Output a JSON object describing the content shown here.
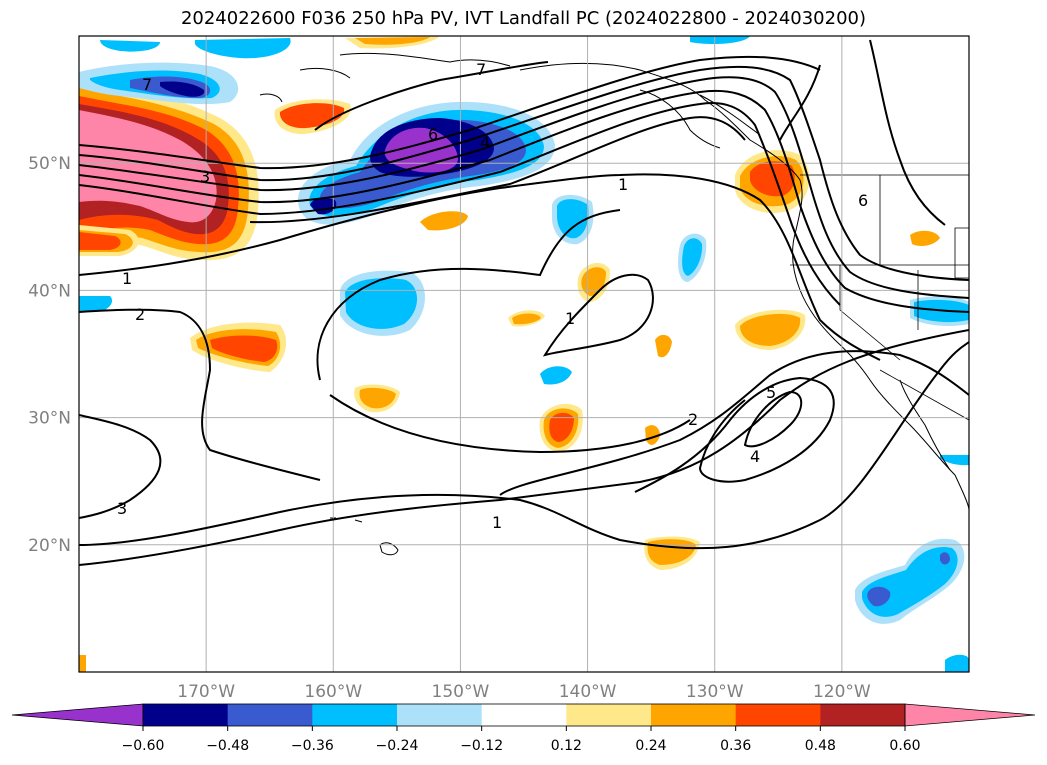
{
  "title": "2024022600 F036 250 hPa PV, IVT Landfall PC (2024022800 - 2024030200)",
  "map": {
    "lon_range": [
      -180,
      -110
    ],
    "lat_range": [
      10,
      60
    ],
    "lat_ticks": [
      {
        "lat": 50,
        "label": "50°N"
      },
      {
        "lat": 40,
        "label": "40°N"
      },
      {
        "lat": 30,
        "label": "30°N"
      },
      {
        "lat": 20,
        "label": "20°N"
      }
    ],
    "lon_ticks": [
      {
        "lon": -170,
        "label": "170°W"
      },
      {
        "lon": -160,
        "label": "160°W"
      },
      {
        "lon": -150,
        "label": "150°W"
      },
      {
        "lon": -140,
        "label": "140°W"
      },
      {
        "lon": -130,
        "label": "130°W"
      },
      {
        "lon": -120,
        "label": "120°W"
      }
    ],
    "gridlines": true
  },
  "contour_labels": [
    "7",
    "3",
    "1",
    "2",
    "6",
    "4",
    "7",
    "1",
    "6",
    "1",
    "2",
    "5",
    "4",
    "3",
    "1"
  ],
  "colorbar": {
    "colors": [
      "#9932CC",
      "#00008B",
      "#3A5BD0",
      "#00BFFF",
      "#ADE1FA",
      "#FFFFFF",
      "#FFE88A",
      "#FFA500",
      "#FF4500",
      "#B22222",
      "#FF85A8"
    ],
    "tick_labels": [
      "−0.60",
      "−0.48",
      "−0.36",
      "−0.24",
      "−0.12",
      "0.12",
      "0.24",
      "0.36",
      "0.48",
      "0.60"
    ]
  }
}
